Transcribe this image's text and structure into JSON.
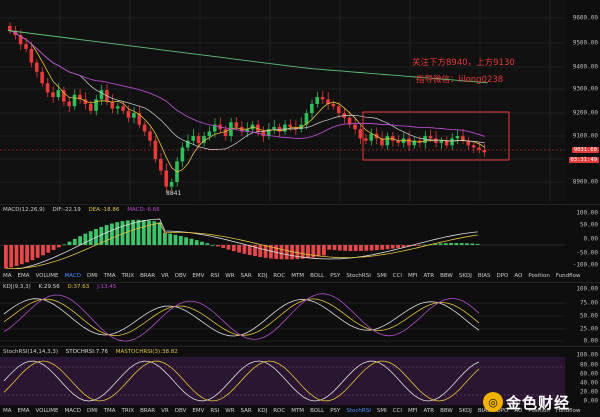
{
  "price_axis": {
    "ticks": [
      "9600.00",
      "9500.00",
      "9400.00",
      "9300.00",
      "9200.00",
      "9100.00",
      "9000.00",
      "8900.00"
    ],
    "current_price": "9031.60",
    "countdown": "03:31:49"
  },
  "annotation": {
    "line1": "关注下方8940，上方9130",
    "line2": "指导微信：lilong0238"
  },
  "low_marker": "8841",
  "macd": {
    "params": "MACD(12,26,9)",
    "dif": "DIF:-22.19",
    "dea": "DEA:-18.86",
    "macd": "MACD:-6.66",
    "ticks": [
      "100.00",
      "50.00",
      "0.00",
      "-50.00",
      "-100.00"
    ]
  },
  "indicator_tabs": [
    "MA",
    "EMA",
    "VOLUME",
    "MACD",
    "DMI",
    "TMA",
    "TRIX",
    "BRAR",
    "VR",
    "OBV",
    "EMV",
    "RSI",
    "WR",
    "SAR",
    "KDJ",
    "ROC",
    "MTM",
    "BOLL",
    "PSY",
    "StochRSI",
    "SMI",
    "CCI",
    "MFI",
    "ATR",
    "BBW",
    "SKDJ",
    "BIAS",
    "DPO",
    "AO",
    "Position",
    "Fundflow"
  ],
  "kdj": {
    "params": "KDJ(9,3,3)",
    "k": "K:29.56",
    "d": "D:37.63",
    "j": "J:13.45",
    "ticks": [
      "100.00",
      "75.00",
      "50.00",
      "25.00",
      "0.00"
    ]
  },
  "stochrsi": {
    "params": "StochRSI(14,14,3,3)",
    "stochrsi": "STOCHRSI:7.76",
    "mastochrsi": "MASTOCHRSI(3):38.82",
    "ticks": [
      "100.00",
      "80.00",
      "60.00",
      "40.00",
      "20.00",
      "0.00"
    ]
  },
  "watermark": {
    "text": "金色财经"
  },
  "colors": {
    "up": "#2fbf5a",
    "down": "#e83b3b",
    "ma_yellow": "#e0c23c",
    "ma_purple": "#b34cc9",
    "ma_green": "#5fbf7a",
    "annotation": "#e63a3a"
  }
}
